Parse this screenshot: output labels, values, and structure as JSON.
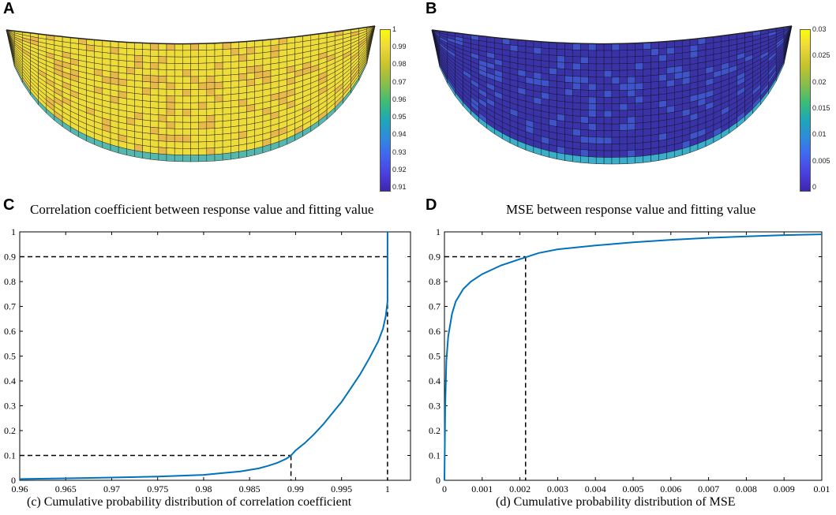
{
  "panel_labels": {
    "a": "A",
    "b": "B",
    "c": "C",
    "d": "D"
  },
  "colors": {
    "curve": "#0072BD",
    "mesh_a_fill": "#EEDC3A",
    "mesh_a_patch": "#E8B84A",
    "mesh_b_fill": "#3A33A8",
    "mesh_b_patch": "#3E54C8",
    "mesh_edge": "#1e1e1e"
  },
  "mesh_a": {
    "colorbar": {
      "ticks": [
        "1",
        "0.99",
        "0.98",
        "0.97",
        "0.96",
        "0.95",
        "0.94",
        "0.93",
        "0.92",
        "0.91"
      ]
    }
  },
  "mesh_b": {
    "colorbar": {
      "ticks": [
        "0.03",
        "0.025",
        "0.02",
        "0.015",
        "0.01",
        "0.005",
        "0"
      ]
    }
  },
  "chart_data": [
    {
      "type": "line",
      "title": "Correlation coefficient between response value and fitting value",
      "xlabel": "(c) Cumulative probability distribution of correlation coefficient",
      "ylabel": "",
      "xlim": [
        0.96,
        1.0025
      ],
      "ylim": [
        0,
        1
      ],
      "xticks": [
        0.96,
        0.965,
        0.97,
        0.975,
        0.98,
        0.985,
        0.99,
        0.995,
        1
      ],
      "xtick_labels": [
        "0.96",
        "0.965",
        "0.97",
        "0.975",
        "0.98",
        "0.985",
        "0.99",
        "0.995",
        "1"
      ],
      "yticks": [
        0,
        0.1,
        0.2,
        0.3,
        0.4,
        0.5,
        0.6,
        0.7,
        0.8,
        0.9,
        1
      ],
      "ytick_labels": [
        "0",
        "0.1",
        "0.2",
        "0.3",
        "0.4",
        "0.5",
        "0.6",
        "0.7",
        "0.8",
        "0.9",
        "1"
      ],
      "series": [
        {
          "name": "CDF",
          "x": [
            0.96,
            0.965,
            0.97,
            0.975,
            0.978,
            0.98,
            0.982,
            0.984,
            0.986,
            0.987,
            0.988,
            0.989,
            0.9895,
            0.99,
            0.991,
            0.992,
            0.993,
            0.994,
            0.995,
            0.996,
            0.997,
            0.998,
            0.999,
            0.9995,
            0.9998,
            1.0,
            1.0,
            1.0
          ],
          "y": [
            0.005,
            0.008,
            0.011,
            0.015,
            0.019,
            0.022,
            0.029,
            0.036,
            0.048,
            0.058,
            0.07,
            0.087,
            0.1,
            0.12,
            0.15,
            0.185,
            0.225,
            0.27,
            0.315,
            0.37,
            0.425,
            0.49,
            0.56,
            0.61,
            0.66,
            0.72,
            0.9,
            1.0
          ]
        }
      ],
      "reference_lines": [
        {
          "y": 0.9,
          "x": 1.0
        },
        {
          "y": 0.1,
          "x": 0.9895
        }
      ]
    },
    {
      "type": "line",
      "title": "MSE between response value and fitting value",
      "xlabel": "(d) Cumulative probability distribution of MSE",
      "ylabel": "",
      "xlim": [
        0,
        0.01
      ],
      "ylim": [
        0,
        1
      ],
      "xticks": [
        0,
        0.001,
        0.002,
        0.003,
        0.004,
        0.005,
        0.006,
        0.007,
        0.008,
        0.009,
        0.01
      ],
      "xtick_labels": [
        "0",
        "0.001",
        "0.002",
        "0.003",
        "0.004",
        "0.005",
        "0.006",
        "0.007",
        "0.008",
        "0.009",
        "0.01"
      ],
      "yticks": [
        0,
        0.1,
        0.2,
        0.3,
        0.4,
        0.5,
        0.6,
        0.7,
        0.8,
        0.9,
        1
      ],
      "ytick_labels": [
        "0",
        "0.1",
        "0.2",
        "0.3",
        "0.4",
        "0.5",
        "0.6",
        "0.7",
        "0.8",
        "0.9",
        "1"
      ],
      "series": [
        {
          "name": "CDF",
          "x": [
            0,
            2e-05,
            5e-05,
            0.0001,
            0.0002,
            0.0003,
            0.0005,
            0.0007,
            0.001,
            0.0015,
            0.002,
            0.0025,
            0.003,
            0.004,
            0.005,
            0.006,
            0.007,
            0.008,
            0.009,
            0.01
          ],
          "y": [
            0,
            0.3,
            0.48,
            0.58,
            0.67,
            0.72,
            0.77,
            0.8,
            0.83,
            0.865,
            0.89,
            0.915,
            0.93,
            0.945,
            0.958,
            0.968,
            0.976,
            0.982,
            0.987,
            0.99
          ]
        }
      ],
      "reference_lines": [
        {
          "y": 0.9,
          "x": 0.00215
        }
      ]
    }
  ]
}
